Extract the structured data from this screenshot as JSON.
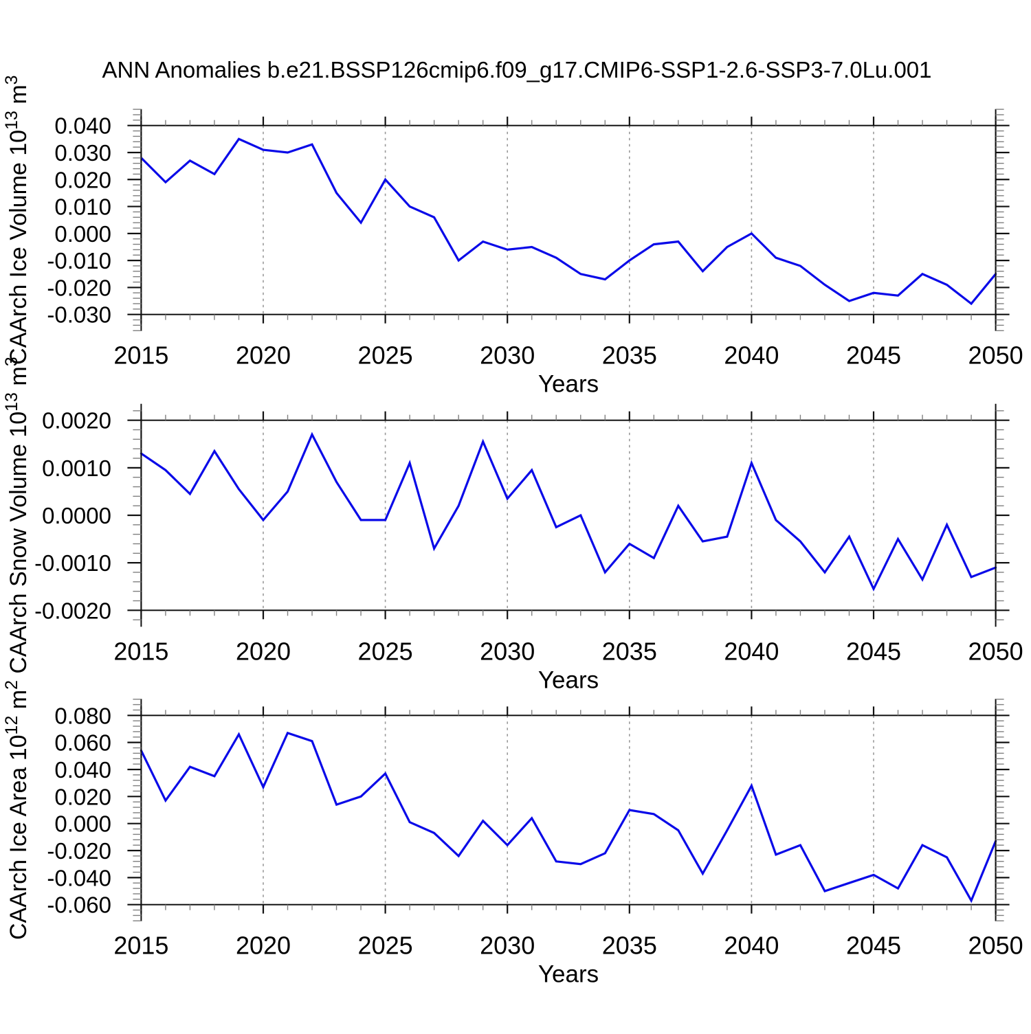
{
  "title": "ANN Anomalies b.e21.BSSP126cmip6.f09_g17.CMIP6-SSP1-2.6-SSP3-7.0Lu.001",
  "styles": {
    "line_color": "#0a0ae8",
    "axis_color": "#111111",
    "minor_tick_color": "#808080",
    "grid_color": "#999999",
    "text_color": "#000000",
    "background": "#ffffff"
  },
  "x_axis": {
    "label": "Years",
    "year_start": 2015,
    "year_end": 2050,
    "minor_step_years": 1,
    "major_step_years": 5,
    "xtick_years": [
      2015,
      2020,
      2025,
      2030,
      2035,
      2040,
      2045,
      2050
    ],
    "xtick_labels": [
      "2015",
      "2020",
      "2025",
      "2030",
      "2035",
      "2040",
      "2045",
      "2050"
    ],
    "grid_years": [
      2020,
      2025,
      2030,
      2035,
      2040,
      2045
    ]
  },
  "chart_data": [
    {
      "type": "line",
      "name": "ice-volume",
      "ylabel": "CAArch Ice Volume 10^13 m^3",
      "ylabel_segments": [
        {
          "t": "CAArch Ice Volume 10",
          "sup": false
        },
        {
          "t": "13",
          "sup": true
        },
        {
          "t": " m",
          "sup": false
        },
        {
          "t": "3",
          "sup": true
        }
      ],
      "xlabel": "Years",
      "ylim": [
        -0.03,
        0.04
      ],
      "ytick_step": 0.01,
      "yminor_step": 0.002,
      "ytick_labels": [
        "0.040",
        "0.030",
        "0.020",
        "0.010",
        "0.000",
        "-0.010",
        "-0.020",
        "-0.030"
      ],
      "x": [
        2015,
        2016,
        2017,
        2018,
        2019,
        2020,
        2021,
        2022,
        2023,
        2024,
        2025,
        2026,
        2027,
        2028,
        2029,
        2030,
        2031,
        2032,
        2033,
        2034,
        2035,
        2036,
        2037,
        2038,
        2039,
        2040,
        2041,
        2042,
        2043,
        2044,
        2045,
        2046,
        2047,
        2048,
        2049,
        2050
      ],
      "values": [
        0.028,
        0.019,
        0.027,
        0.022,
        0.035,
        0.031,
        0.03,
        0.033,
        0.015,
        0.004,
        0.02,
        0.01,
        0.006,
        -0.01,
        -0.003,
        -0.006,
        -0.005,
        -0.009,
        -0.015,
        -0.017,
        -0.01,
        -0.004,
        -0.003,
        -0.014,
        -0.005,
        0.0,
        -0.009,
        -0.012,
        -0.019,
        -0.025,
        -0.022,
        -0.023,
        -0.015,
        -0.019,
        -0.026,
        -0.015
      ]
    },
    {
      "type": "line",
      "name": "snow-volume",
      "ylabel": "CAArch Snow Volume 10^13 m^3",
      "ylabel_segments": [
        {
          "t": "CAArch Snow Volume 10",
          "sup": false
        },
        {
          "t": "13",
          "sup": true
        },
        {
          "t": " m",
          "sup": false
        },
        {
          "t": "3",
          "sup": true
        }
      ],
      "xlabel": "Years",
      "ylim": [
        -0.002,
        0.002
      ],
      "ytick_step": 0.001,
      "yminor_step": 0.0002,
      "ytick_labels": [
        "0.0020",
        "0.0010",
        "0.0000",
        "-0.0010",
        "-0.0020"
      ],
      "x": [
        2015,
        2016,
        2017,
        2018,
        2019,
        2020,
        2021,
        2022,
        2023,
        2024,
        2025,
        2026,
        2027,
        2028,
        2029,
        2030,
        2031,
        2032,
        2033,
        2034,
        2035,
        2036,
        2037,
        2038,
        2039,
        2040,
        2041,
        2042,
        2043,
        2044,
        2045,
        2046,
        2047,
        2048,
        2049,
        2050
      ],
      "values": [
        0.0013,
        0.00095,
        0.00045,
        0.00135,
        0.00055,
        -0.0001,
        0.0005,
        0.0017,
        0.0007,
        -0.0001,
        -0.0001,
        0.0011,
        -0.0007,
        0.0002,
        0.00155,
        0.00035,
        0.00095,
        -0.00025,
        0.0,
        -0.0012,
        -0.0006,
        -0.0009,
        0.0002,
        -0.00055,
        -0.00045,
        0.0011,
        -0.0001,
        -0.00055,
        -0.0012,
        -0.00045,
        -0.00155,
        -0.0005,
        -0.00135,
        -0.0002,
        -0.0013,
        -0.0011
      ]
    },
    {
      "type": "line",
      "name": "ice-area",
      "ylabel": "CAArch Ice Area 10^12 m^2",
      "ylabel_segments": [
        {
          "t": "CAArch Ice Area 10",
          "sup": false
        },
        {
          "t": "12",
          "sup": true
        },
        {
          "t": " m",
          "sup": false
        },
        {
          "t": "2",
          "sup": true
        }
      ],
      "xlabel": "Years",
      "ylim": [
        -0.06,
        0.08
      ],
      "ytick_step": 0.02,
      "yminor_step": 0.004,
      "ytick_labels": [
        "0.080",
        "0.060",
        "0.040",
        "0.020",
        "0.000",
        "-0.020",
        "-0.040",
        "-0.060"
      ],
      "x": [
        2015,
        2016,
        2017,
        2018,
        2019,
        2020,
        2021,
        2022,
        2023,
        2024,
        2025,
        2026,
        2027,
        2028,
        2029,
        2030,
        2031,
        2032,
        2033,
        2034,
        2035,
        2036,
        2037,
        2038,
        2039,
        2040,
        2041,
        2042,
        2043,
        2044,
        2045,
        2046,
        2047,
        2048,
        2049,
        2050
      ],
      "values": [
        0.054,
        0.017,
        0.042,
        0.035,
        0.066,
        0.027,
        0.067,
        0.061,
        0.014,
        0.02,
        0.037,
        0.001,
        -0.007,
        -0.024,
        0.002,
        -0.016,
        0.004,
        -0.028,
        -0.03,
        -0.022,
        0.01,
        0.007,
        -0.005,
        -0.037,
        -0.005,
        0.028,
        -0.023,
        -0.016,
        -0.05,
        -0.044,
        -0.038,
        -0.048,
        -0.016,
        -0.025,
        -0.057,
        -0.013
      ]
    }
  ]
}
